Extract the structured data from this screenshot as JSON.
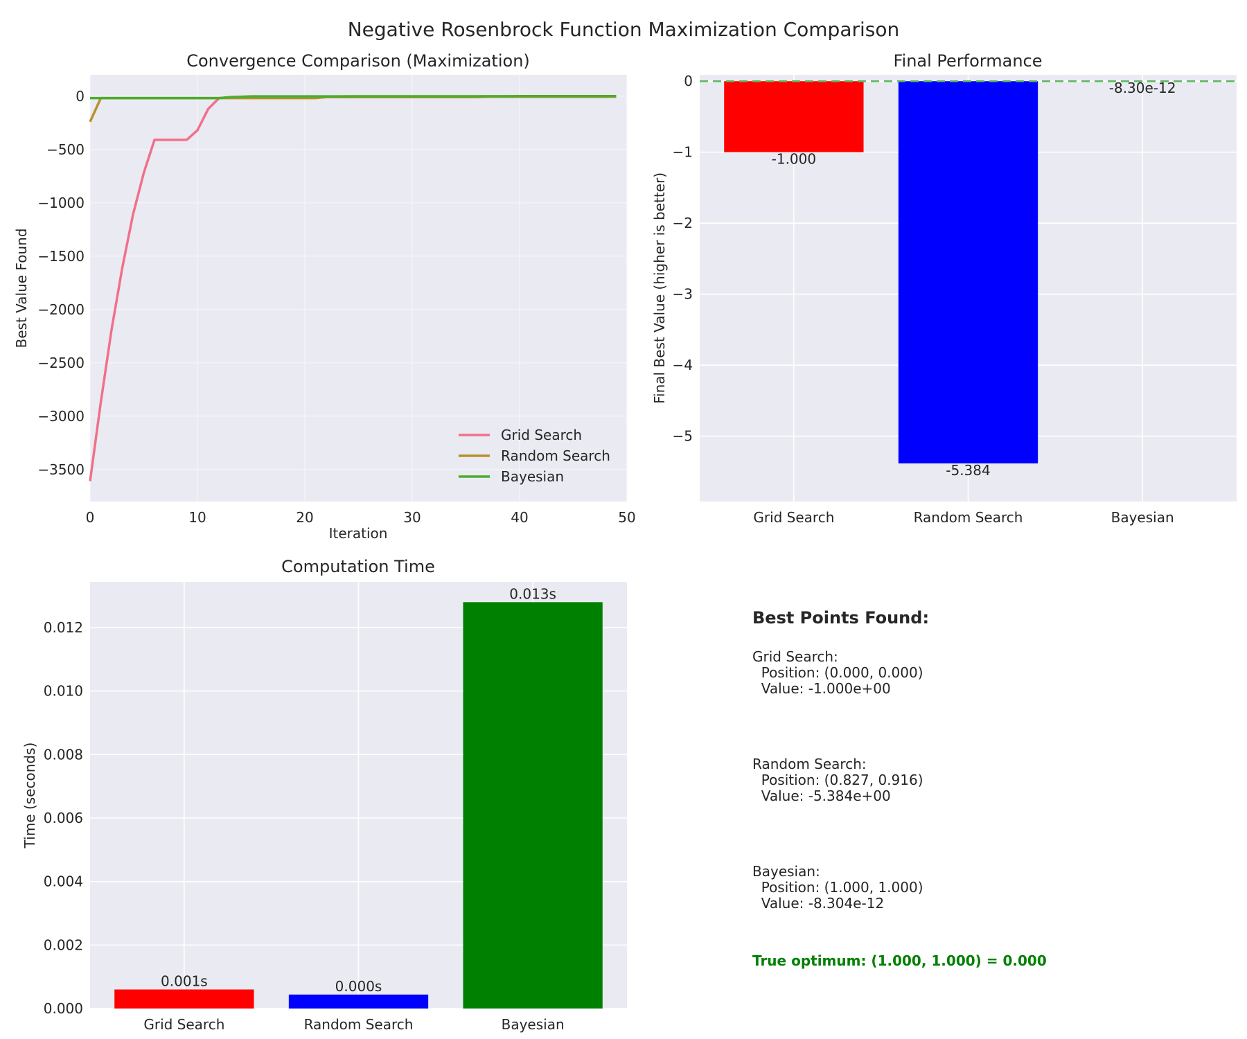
{
  "suptitle": "Negative Rosenbrock Function Maximization Comparison",
  "colors": {
    "grid_search_line": "#f0708a",
    "random_search_line": "#b8912c",
    "bayesian_line": "#4aad2e",
    "grid_search_bar": "#ff0000",
    "random_search_bar": "#0000ff",
    "bayesian_bar": "#008000",
    "optimum_line": "#5cb85c",
    "panel_bg": "#eaeaf2"
  },
  "chart_data": [
    {
      "type": "line",
      "title": "Convergence Comparison (Maximization)",
      "xlabel": "Iteration",
      "ylabel": "Best Value Found",
      "xlim": [
        0,
        50
      ],
      "ylim": [
        -3800,
        200
      ],
      "xticks": [
        "0",
        "10",
        "20",
        "30",
        "40",
        "50"
      ],
      "yticks": [
        "0",
        "−500",
        "−1000",
        "−1500",
        "−2000",
        "−2500",
        "−3000",
        "−3500"
      ],
      "grid": true,
      "legend": "lower-right",
      "series": [
        {
          "name": "Grid Search",
          "x": [
            0,
            1,
            2,
            3,
            4,
            5,
            6,
            7,
            8,
            9,
            10,
            11,
            12,
            13,
            14,
            15,
            16,
            17,
            18,
            19,
            20,
            21,
            22,
            23,
            24,
            25,
            26,
            27,
            28,
            29,
            30,
            31,
            32,
            33,
            34,
            35,
            36,
            37,
            38,
            39,
            40,
            41,
            42,
            43,
            44,
            45,
            46,
            47,
            48,
            49
          ],
          "values": [
            -3610,
            -2870,
            -2190,
            -1610,
            -1110,
            -720,
            -410,
            -410,
            -410,
            -410,
            -320,
            -120,
            -20,
            -10,
            -8,
            -5,
            -5,
            -5,
            -5,
            -5,
            -5,
            -5,
            -5,
            -4,
            -4,
            -4,
            -4,
            -4,
            -4,
            -4,
            -4,
            -4,
            -4,
            -4,
            -4,
            -4,
            -4,
            -3,
            -3,
            -3,
            -3,
            -3,
            -3,
            -3,
            -3,
            -3,
            -3,
            -2,
            -2,
            -1
          ]
        },
        {
          "name": "Random Search",
          "x": [
            0,
            1,
            2,
            3,
            4,
            5,
            6,
            7,
            8,
            9,
            10,
            11,
            12,
            13,
            14,
            15,
            16,
            17,
            18,
            19,
            20,
            21,
            22,
            23,
            24,
            25,
            26,
            27,
            28,
            29,
            30,
            31,
            32,
            33,
            34,
            35,
            36,
            37,
            38,
            39,
            40,
            41,
            42,
            43,
            44,
            45,
            46,
            47,
            48,
            49
          ],
          "values": [
            -240,
            -18,
            -18,
            -18,
            -18,
            -18,
            -18,
            -18,
            -18,
            -18,
            -18,
            -18,
            -18,
            -18,
            -18,
            -18,
            -18,
            -18,
            -18,
            -18,
            -18,
            -18,
            -10,
            -10,
            -10,
            -10,
            -10,
            -10,
            -10,
            -10,
            -10,
            -10,
            -10,
            -10,
            -10,
            -10,
            -10,
            -6,
            -6,
            -6,
            -6,
            -6,
            -6,
            -6,
            -6,
            -6,
            -6,
            -6,
            -6,
            -5.4
          ]
        },
        {
          "name": "Bayesian",
          "x": [
            0,
            1,
            2,
            3,
            4,
            5,
            6,
            7,
            8,
            9,
            10,
            11,
            12,
            13,
            14,
            15,
            16,
            17,
            18,
            19,
            20,
            21,
            22,
            23,
            24,
            25,
            26,
            27,
            28,
            29,
            30,
            31,
            32,
            33,
            34,
            35,
            36,
            37,
            38,
            39,
            40,
            41,
            42,
            43,
            44,
            45,
            46,
            47,
            48,
            49
          ],
          "values": [
            -18,
            -18,
            -18,
            -18,
            -18,
            -18,
            -18,
            -18,
            -18,
            -18,
            -18,
            -18,
            -18,
            -10,
            -6,
            -2,
            -2,
            -2,
            -2,
            -2,
            -2,
            -2,
            -2,
            -2,
            -1,
            -1,
            -1,
            -1,
            -1,
            -1,
            -1,
            -1,
            -1,
            -1,
            -1,
            -1,
            -1,
            -0.5,
            -0.5,
            -0.5,
            -0.3,
            -0.3,
            -0.2,
            -0.1,
            -0.05,
            -0.01,
            0,
            0,
            0,
            0
          ]
        }
      ]
    },
    {
      "type": "bar",
      "title": "Final Performance",
      "xlabel": "",
      "ylabel": "Final Best Value (higher is better)",
      "categories": [
        "Grid Search",
        "Random Search",
        "Bayesian"
      ],
      "values": [
        -1.0,
        -5.384,
        -8.3e-12
      ],
      "data_labels": [
        "-1.000",
        "-5.384",
        "-8.30e-12"
      ],
      "ylim": [
        -5.92,
        0.09
      ],
      "yticks": [
        "0",
        "−1",
        "−2",
        "−3",
        "−4",
        "−5"
      ],
      "reference_line": 0,
      "grid": true
    },
    {
      "type": "bar",
      "title": "Computation Time",
      "xlabel": "",
      "ylabel": "Time (seconds)",
      "categories": [
        "Grid Search",
        "Random Search",
        "Bayesian"
      ],
      "values": [
        0.0006,
        0.00044,
        0.0128
      ],
      "data_labels": [
        "0.001s",
        "0.000s",
        "0.013s"
      ],
      "ylim": [
        0,
        0.01344
      ],
      "yticks": [
        "0.000",
        "0.002",
        "0.004",
        "0.006",
        "0.008",
        "0.010",
        "0.012"
      ],
      "grid": true
    }
  ],
  "best_points": {
    "heading": "Best Points Found:",
    "entries": [
      {
        "name": "Grid Search:",
        "position": "  Position: (0.000, 0.000)",
        "value": "  Value: -1.000e+00"
      },
      {
        "name": "Random Search:",
        "position": "  Position: (0.827, 0.916)",
        "value": "  Value: -5.384e+00"
      },
      {
        "name": "Bayesian:",
        "position": "  Position: (1.000, 1.000)",
        "value": "  Value: -8.304e-12"
      }
    ],
    "optimum": "True optimum: (1.000, 1.000) = 0.000"
  }
}
